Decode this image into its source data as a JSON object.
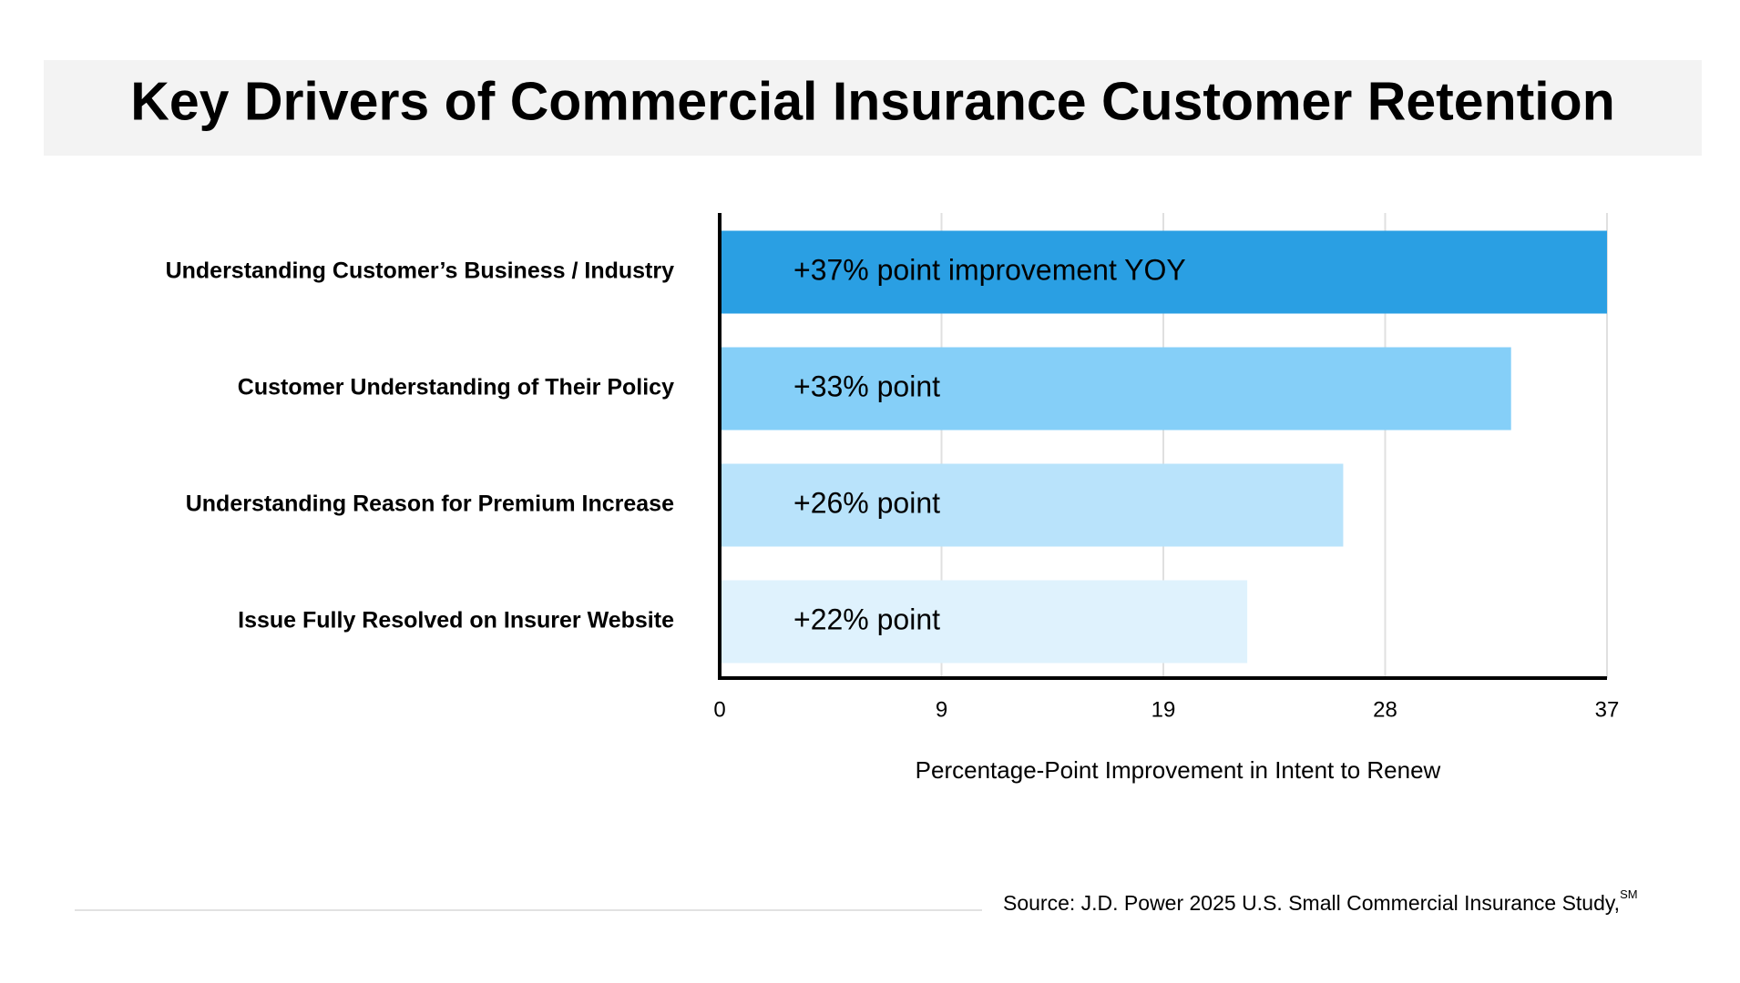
{
  "chart_data": {
    "type": "hbar",
    "title": "Key Drivers of Commercial Insurance Customer Retention",
    "categories": [
      "Understanding Customer’s Business / Industry",
      "Customer Understanding of Their Policy",
      "Understanding Reason for Premium Increase",
      "Issue Fully Resolved on Insurer Website"
    ],
    "values": [
      37,
      33,
      26,
      22
    ],
    "value_labels": [
      "+37% point improvement YOY",
      "+33% point",
      "+26% point",
      "+22% point"
    ],
    "colors": [
      "#2a9fe3",
      "#85cff8",
      "#b9e3fb",
      "#dff2fd"
    ],
    "xlim": [
      0,
      37
    ],
    "xticks": [
      0,
      {
        "value": 9.25,
        "label": "9"
      },
      {
        "value": 18.5,
        "label": "19"
      },
      {
        "value": 27.75,
        "label": "28"
      },
      37
    ],
    "xlabel": "Percentage-Point Improvement in Intent to Renew",
    "grid": true,
    "source": "Source: J.D. Power 2025 U.S. Small Commercial Insurance Study,",
    "source_mark": "SM"
  }
}
